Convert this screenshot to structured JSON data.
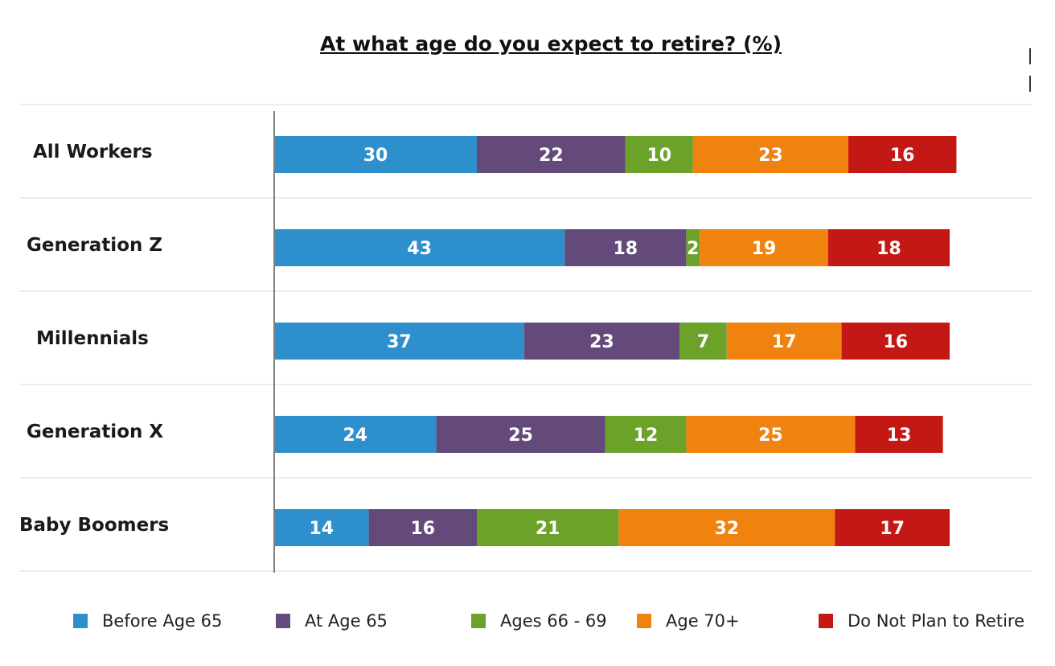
{
  "chart_data": {
    "type": "bar",
    "orientation": "horizontal",
    "stacked": true,
    "title": "At what age do you expect to retire? (%)",
    "categories": [
      "All Workers",
      "Generation Z",
      "Millennials",
      "Generation X",
      "Baby Boomers"
    ],
    "series": [
      {
        "name": "Before Age 65",
        "color": "#2e8fcd",
        "values": [
          30,
          43,
          37,
          24,
          14
        ]
      },
      {
        "name": "At Age 65",
        "color": "#634a7a",
        "values": [
          22,
          18,
          23,
          25,
          16
        ]
      },
      {
        "name": "Ages 66 - 69",
        "color": "#6ca12a",
        "values": [
          10,
          2,
          7,
          12,
          21
        ]
      },
      {
        "name": "Age 70+",
        "color": "#f0820f",
        "values": [
          23,
          19,
          17,
          25,
          32
        ]
      },
      {
        "name": "Do Not Plan to Retire",
        "color": "#c41815",
        "values": [
          16,
          18,
          16,
          13,
          17
        ]
      }
    ],
    "legend": "bottom",
    "grid": "horizontal separators"
  }
}
